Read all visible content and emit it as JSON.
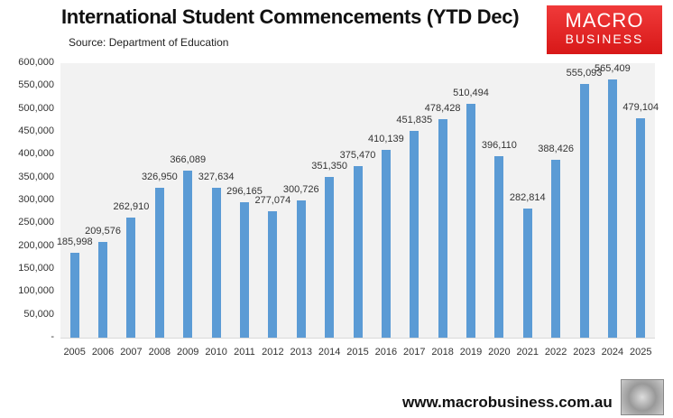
{
  "header": {
    "title": "International Student Commencements (YTD Dec)",
    "source": "Source: Department of Education",
    "logo_line1": "MACRO",
    "logo_line2": "BUSINESS"
  },
  "footer": {
    "url": "www.macrobusiness.com.au"
  },
  "y_ticks": [
    "600,000",
    "550,000",
    "500,000",
    "450,000",
    "400,000",
    "350,000",
    "300,000",
    "250,000",
    "200,000",
    "150,000",
    "100,000",
    "50,000",
    "-"
  ],
  "labels": [
    "185,998",
    "209,576",
    "262,910",
    "326,950",
    "366,089",
    "327,634",
    "296,165",
    "277,074",
    "300,726",
    "351,350",
    "375,470",
    "410,139",
    "451,835",
    "478,428",
    "510,494",
    "396,110",
    "282,814",
    "388,426",
    "555,093",
    "565,409",
    "479,104"
  ],
  "chart_data": {
    "type": "bar",
    "title": "International Student Commencements (YTD Dec)",
    "subtitle": "Source: Department of Education",
    "xlabel": "",
    "ylabel": "",
    "ylim": [
      0,
      600000
    ],
    "y_tick_step": 50000,
    "grid": false,
    "legend": null,
    "bar_color": "#5b9bd5",
    "categories": [
      "2005",
      "2006",
      "2007",
      "2008",
      "2009",
      "2010",
      "2011",
      "2012",
      "2013",
      "2014",
      "2015",
      "2016",
      "2017",
      "2018",
      "2019",
      "2020",
      "2021",
      "2022",
      "2023",
      "2024",
      "2025"
    ],
    "values": [
      185998,
      209576,
      262910,
      326950,
      366089,
      327634,
      296165,
      277074,
      300726,
      351350,
      375470,
      410139,
      451835,
      478428,
      510494,
      396110,
      282814,
      388426,
      555093,
      565409,
      479104
    ]
  }
}
